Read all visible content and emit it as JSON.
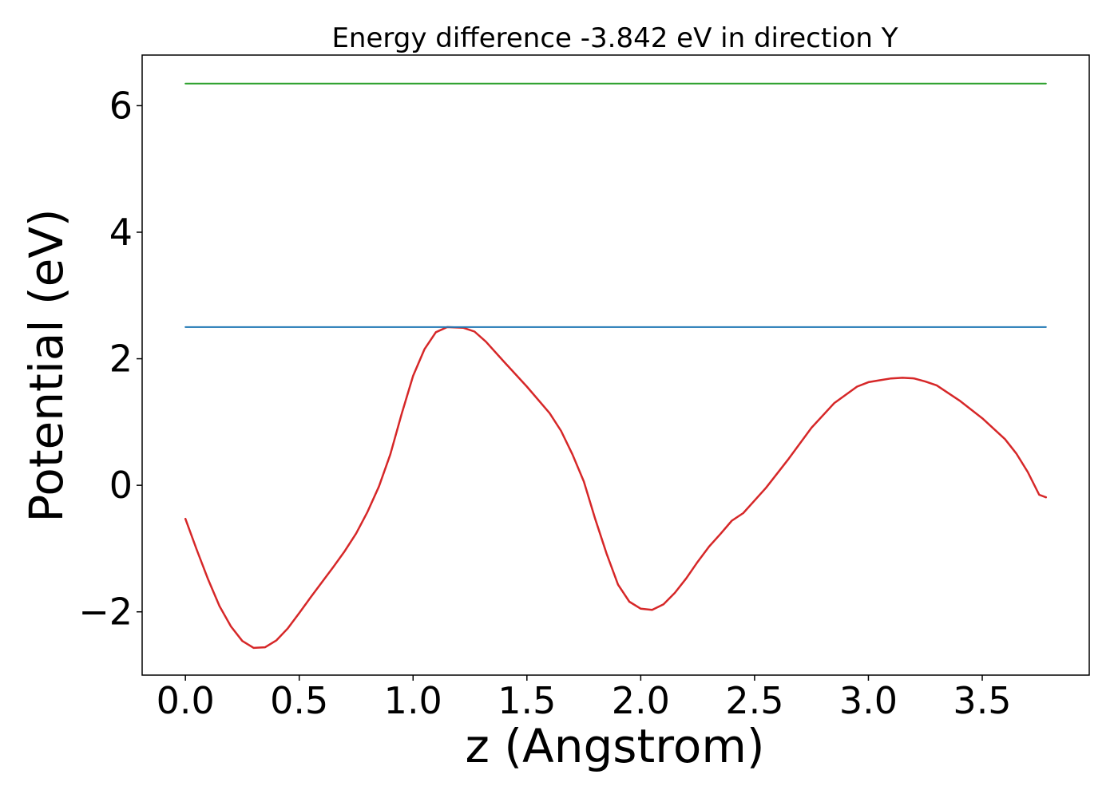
{
  "chart_data": {
    "type": "line",
    "title": "Energy difference -3.842 eV in direction Y",
    "xlabel": "z (Angstrom)",
    "ylabel": "Potential (eV)",
    "xlim": [
      -0.19,
      3.97
    ],
    "ylim": [
      -3.0,
      6.8
    ],
    "xticks": [
      {
        "value": 0.0,
        "label": "0.0"
      },
      {
        "value": 0.5,
        "label": "0.5"
      },
      {
        "value": 1.0,
        "label": "1.0"
      },
      {
        "value": 1.5,
        "label": "1.5"
      },
      {
        "value": 2.0,
        "label": "2.0"
      },
      {
        "value": 2.5,
        "label": "2.5"
      },
      {
        "value": 3.0,
        "label": "3.0"
      },
      {
        "value": 3.5,
        "label": "3.5"
      }
    ],
    "yticks": [
      {
        "value": -2,
        "label": "−2"
      },
      {
        "value": 0,
        "label": "0"
      },
      {
        "value": 2,
        "label": "2"
      },
      {
        "value": 4,
        "label": "4"
      },
      {
        "value": 6,
        "label": "6"
      }
    ],
    "grid": false,
    "series": [
      {
        "color": "#d62728",
        "x": [
          0.0,
          0.05,
          0.1,
          0.15,
          0.2,
          0.25,
          0.3,
          0.35,
          0.4,
          0.45,
          0.5,
          0.55,
          0.6,
          0.65,
          0.7,
          0.75,
          0.8,
          0.85,
          0.9,
          0.95,
          1.0,
          1.05,
          1.1,
          1.15,
          1.22,
          1.27,
          1.32,
          1.4,
          1.5,
          1.6,
          1.65,
          1.7,
          1.75,
          1.8,
          1.85,
          1.9,
          1.95,
          2.0,
          2.05,
          2.1,
          2.15,
          2.2,
          2.25,
          2.3,
          2.35,
          2.4,
          2.45,
          2.55,
          2.65,
          2.75,
          2.85,
          2.95,
          3.0,
          3.05,
          3.1,
          3.15,
          3.2,
          3.25,
          3.3,
          3.4,
          3.5,
          3.6,
          3.65,
          3.7,
          3.75,
          3.78
        ],
        "y": [
          -0.53,
          -1.02,
          -1.49,
          -1.91,
          -2.23,
          -2.46,
          -2.57,
          -2.56,
          -2.45,
          -2.26,
          -2.02,
          -1.77,
          -1.53,
          -1.29,
          -1.04,
          -0.76,
          -0.42,
          -0.02,
          0.49,
          1.13,
          1.73,
          2.15,
          2.42,
          2.5,
          2.49,
          2.43,
          2.27,
          1.95,
          1.56,
          1.14,
          0.86,
          0.49,
          0.06,
          -0.53,
          -1.08,
          -1.57,
          -1.84,
          -1.95,
          -1.97,
          -1.88,
          -1.7,
          -1.47,
          -1.21,
          -0.97,
          -0.77,
          -0.56,
          -0.44,
          -0.04,
          0.42,
          0.91,
          1.3,
          1.56,
          1.63,
          1.66,
          1.69,
          1.7,
          1.69,
          1.64,
          1.58,
          1.34,
          1.06,
          0.73,
          0.5,
          0.21,
          -0.15,
          -0.19
        ]
      },
      {
        "color": "#1f77b4",
        "x": [
          0.0,
          3.78
        ],
        "y": [
          2.5,
          2.5
        ]
      },
      {
        "color": "#2ca02c",
        "x": [
          0.0,
          3.78
        ],
        "y": [
          6.35,
          6.35
        ]
      }
    ]
  }
}
